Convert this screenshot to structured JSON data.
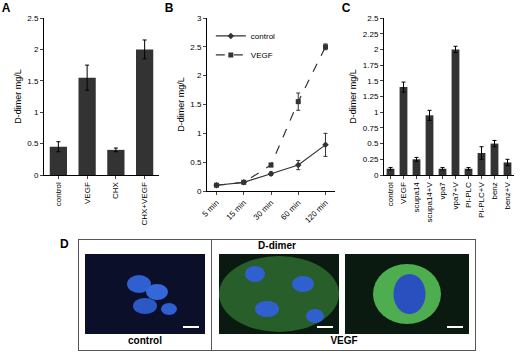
{
  "chart_data": [
    {
      "type": "bar",
      "title": "A",
      "ylabel": "D-dimer mg/L",
      "categories": [
        "control",
        "VEGF",
        "CHX",
        "CHX+VEGF"
      ],
      "values": [
        0.45,
        1.55,
        0.4,
        2.0
      ],
      "errors": [
        0.08,
        0.2,
        0.03,
        0.15
      ],
      "color": "#333333",
      "ylim": [
        0,
        2.5
      ],
      "yticks": [
        0,
        0.5,
        1,
        1.5,
        2,
        2.5
      ],
      "grid": false
    },
    {
      "type": "line",
      "title": "B",
      "ylabel": "D-dimer mg/L",
      "categories": [
        "5 min",
        "15 min",
        "30 min",
        "60 min",
        "120 min"
      ],
      "series": [
        {
          "name": "control",
          "color": "#333333",
          "marker": "diamond",
          "line_style": "solid",
          "values": [
            0.1,
            0.15,
            0.3,
            0.45,
            0.8
          ],
          "errors": [
            0.02,
            0.02,
            0.03,
            0.08,
            0.2
          ]
        },
        {
          "name": "VEGF",
          "color": "#333333",
          "marker": "square",
          "line_style": "dash",
          "values": [
            0.1,
            0.15,
            0.45,
            1.55,
            2.5
          ],
          "errors": [
            0.02,
            0.02,
            0.03,
            0.15,
            0.05
          ]
        }
      ],
      "legend": "upper left",
      "ylim": [
        0,
        3
      ],
      "yticks": [
        0,
        0.5,
        1,
        1.5,
        2,
        2.5,
        3
      ],
      "grid": false
    },
    {
      "type": "bar",
      "title": "C",
      "ylabel": "D-dimer mg/L",
      "categories": [
        "control",
        "VEGF",
        "scupa14",
        "scupa14+V",
        "vpa7",
        "vpa7+V",
        "PI-PLC",
        "PI-PLC+V",
        "benz",
        "benz+V"
      ],
      "values": [
        0.1,
        1.4,
        0.25,
        0.95,
        0.1,
        2.0,
        0.1,
        0.35,
        0.5,
        0.2
      ],
      "errors": [
        0.02,
        0.08,
        0.03,
        0.08,
        0.02,
        0.05,
        0.02,
        0.1,
        0.05,
        0.05
      ],
      "color": "#333333",
      "ylim": [
        0,
        2.5
      ],
      "yticks": [
        0,
        0.25,
        0.5,
        0.75,
        1,
        1.25,
        1.5,
        1.75,
        2,
        2.25,
        2.5
      ],
      "grid": false
    }
  ],
  "panel_d": {
    "title": "D",
    "heading": "D-dimer",
    "labels": [
      "control",
      "VEGF"
    ]
  }
}
